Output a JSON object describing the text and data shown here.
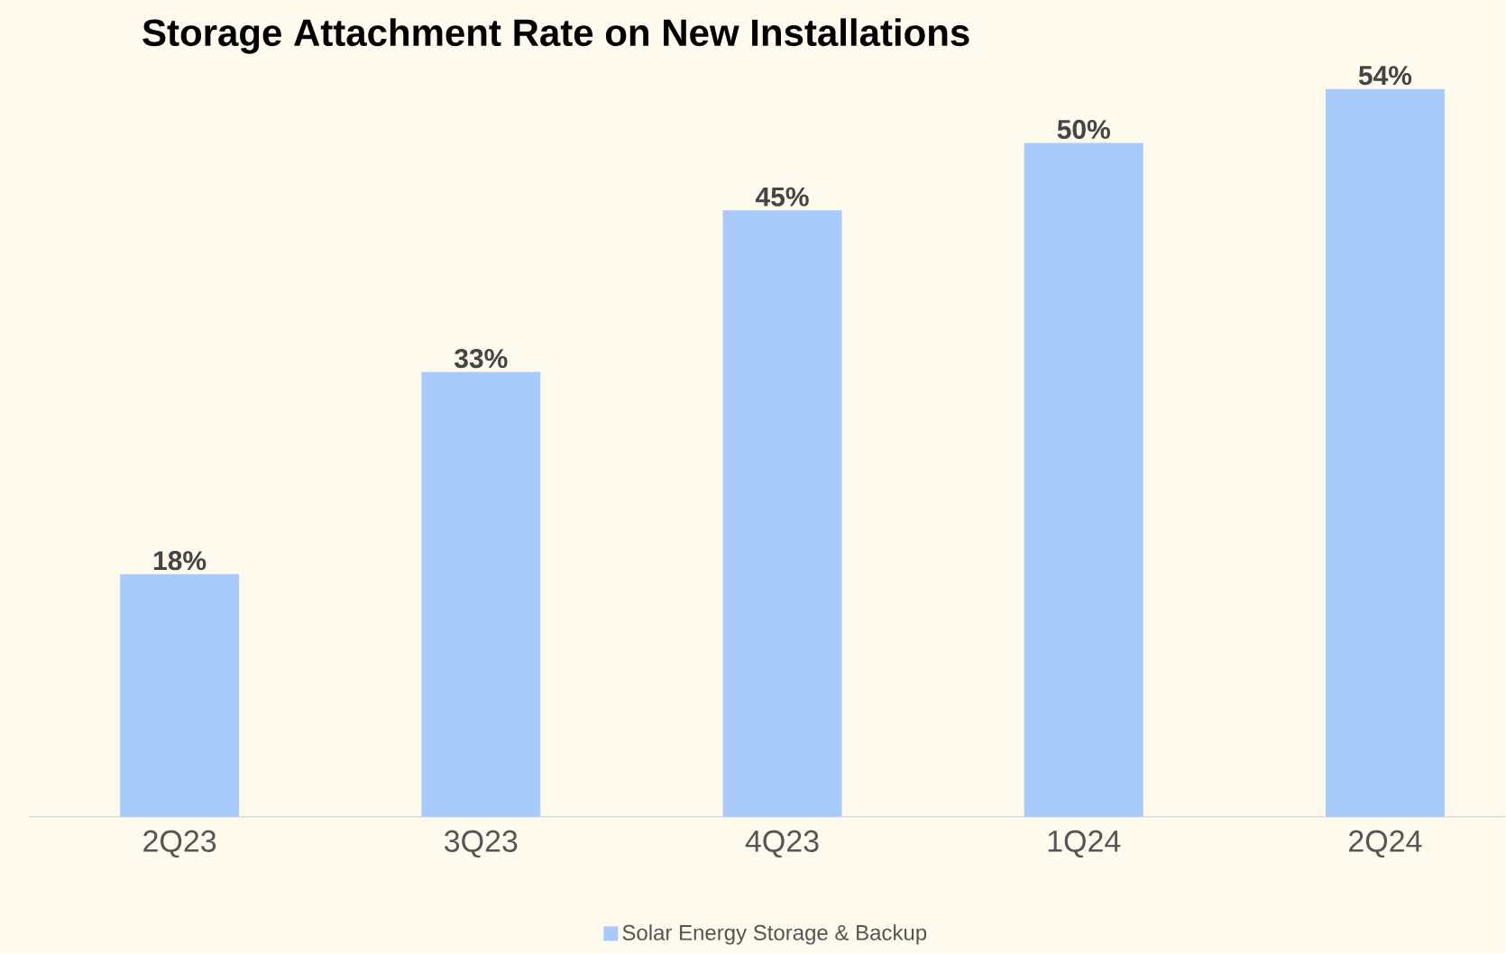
{
  "chart_data": {
    "type": "bar",
    "title": "Storage Attachment Rate on New Installations",
    "categories": [
      "2Q23",
      "3Q23",
      "4Q23",
      "1Q24",
      "2Q24"
    ],
    "series": [
      {
        "name": "Solar Energy Storage & Backup",
        "color": "#a9cbfb",
        "values": [
          18,
          33,
          45,
          50,
          54
        ],
        "value_labels": [
          "18%",
          "33%",
          "45%",
          "50%",
          "54%"
        ]
      }
    ],
    "tick_labels": "x",
    "legend": "bottom"
  }
}
